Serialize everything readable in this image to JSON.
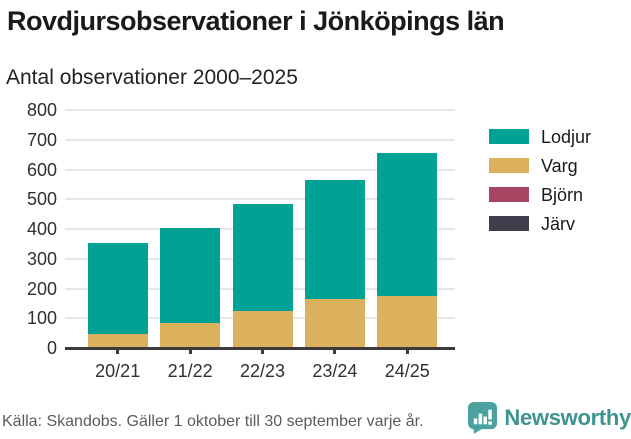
{
  "title": "Rovdjursobservationer i Jönköpings län",
  "subtitle": "Antal observationer 2000–2025",
  "footer": {
    "source": "Källa: Skandobs. Gäller 1 oktober till 30 september varje år.",
    "brand": "Newsworthy"
  },
  "colors": {
    "lodjur": "#00a295",
    "varg": "#dcb15e",
    "bjorn": "#a84563",
    "jarv": "#403e4c",
    "axis": "#3b3b3b",
    "grid": "#e6e6e6",
    "brand_teal": "#4ba19e"
  },
  "chart_data": {
    "type": "bar",
    "stacked": true,
    "title": "Rovdjursobservationer i Jönköpings län",
    "subtitle": "Antal observationer 2000–2025",
    "categories": [
      "20/21",
      "21/22",
      "22/23",
      "23/24",
      "24/25"
    ],
    "series": [
      {
        "name": "Lodjur",
        "color": "#00a295",
        "values": [
          304,
          317,
          360,
          400,
          482
        ]
      },
      {
        "name": "Varg",
        "color": "#dcb15e",
        "values": [
          48,
          85,
          124,
          166,
          174
        ]
      },
      {
        "name": "Björn",
        "color": "#a84563",
        "values": [
          0,
          0,
          0,
          0,
          0
        ]
      },
      {
        "name": "Järv",
        "color": "#403e4c",
        "values": [
          0,
          0,
          0,
          0,
          0
        ]
      }
    ],
    "totals": [
      352,
      402,
      484,
      566,
      656
    ],
    "xlabel": "",
    "ylabel": "",
    "ylim": [
      0,
      800
    ],
    "yticks": [
      0,
      100,
      200,
      300,
      400,
      500,
      600,
      700,
      800
    ],
    "grid": true,
    "legend_position": "right"
  }
}
